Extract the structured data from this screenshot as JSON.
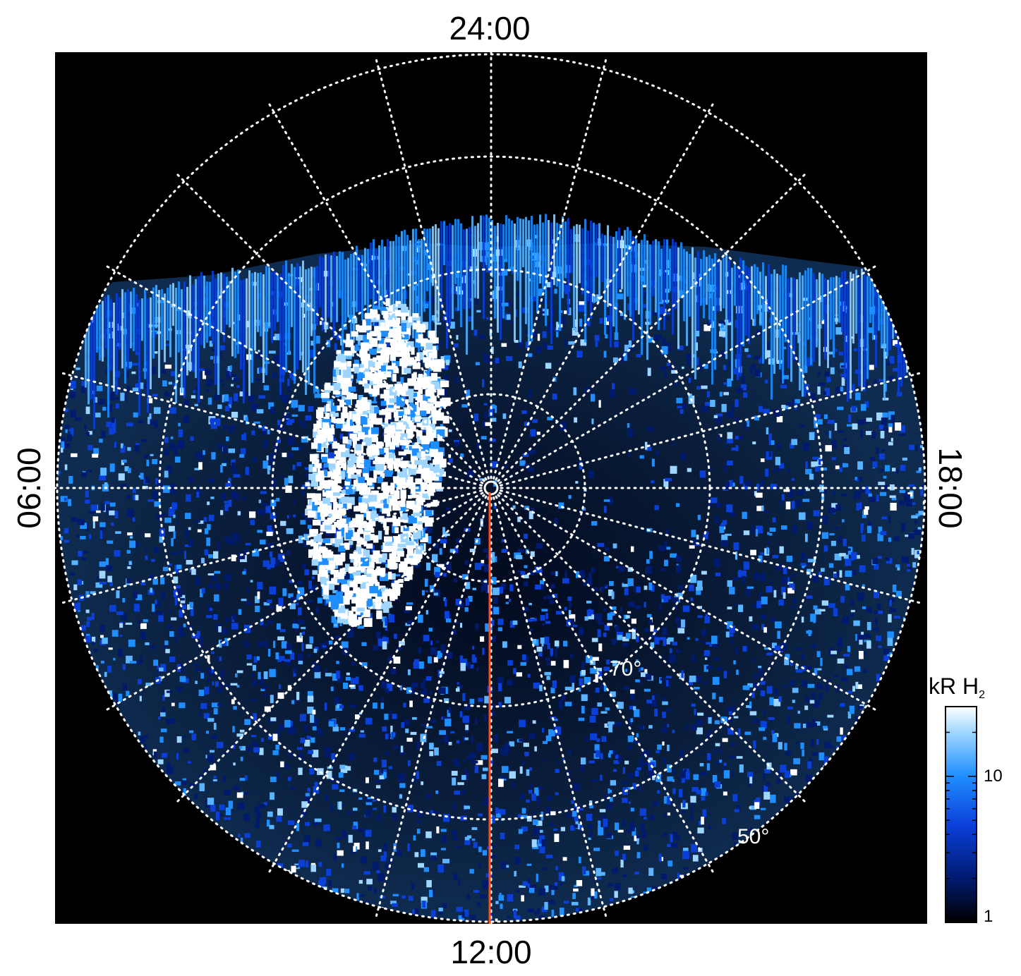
{
  "labels": {
    "top": "24:00",
    "bottom": "12:00",
    "left": "06:00",
    "right": "18:00"
  },
  "latitude_labels": [
    "70°",
    "50°"
  ],
  "colorbar": {
    "title_main": "kR H",
    "title_sub": "2",
    "scale": "log",
    "range": [
      1,
      30
    ],
    "ticks": [
      {
        "value": 1,
        "label": "1"
      },
      {
        "value": 10,
        "label": "10"
      }
    ],
    "colors": [
      "#000000",
      "#001a6e",
      "#0a3fd8",
      "#1f8fff",
      "#9fd6ff",
      "#ffffff"
    ]
  },
  "image": {
    "background": "#000000",
    "grid_color": "#ffffff",
    "meridian_color": "#ff4a1a"
  }
}
